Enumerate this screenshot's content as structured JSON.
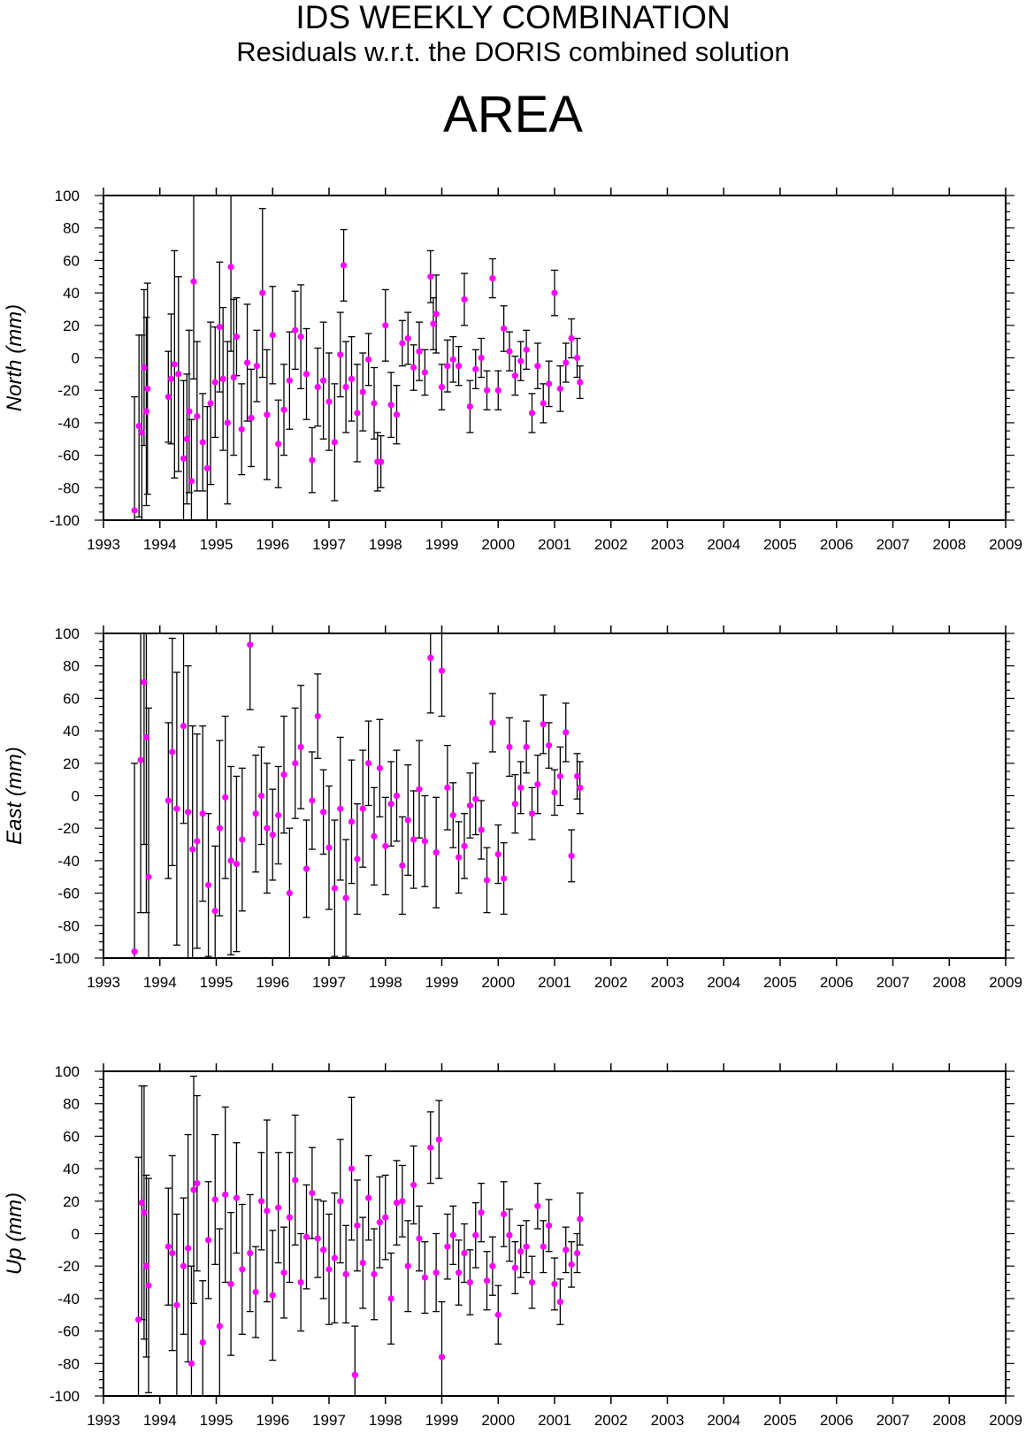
{
  "header": {
    "title": "IDS WEEKLY COMBINATION",
    "subtitle": "Residuals w.r.t. the DORIS combined solution",
    "station": "AREA"
  },
  "colors": {
    "point": "#ff00ff",
    "errorbar": "#000000",
    "axis": "#000000"
  },
  "chart_data": [
    {
      "type": "scatter",
      "ylabel": "North (mm)",
      "xlim": [
        1993,
        2009
      ],
      "ylim": [
        -100,
        100
      ],
      "x_ticks": [
        1993,
        1994,
        1995,
        1996,
        1997,
        1998,
        1999,
        2000,
        2001,
        2002,
        2003,
        2004,
        2005,
        2006,
        2007,
        2008,
        2009
      ],
      "y_ticks": [
        -100,
        -80,
        -60,
        -40,
        -20,
        0,
        20,
        40,
        60,
        80,
        100
      ],
      "series": [
        {
          "x": [
            1993.55,
            1993.63,
            1993.68,
            1993.72,
            1993.76,
            1993.78,
            1994.15,
            1994.2,
            1994.26,
            1994.33,
            1994.42,
            1994.48,
            1994.52,
            1994.56,
            1994.6,
            1994.66,
            1994.76,
            1994.84,
            1994.9,
            1994.98,
            1995.06,
            1995.12,
            1995.2,
            1995.26,
            1995.31,
            1995.36,
            1995.45,
            1995.55,
            1995.62,
            1995.72,
            1995.82,
            1995.9,
            1996.0,
            1996.1,
            1996.2,
            1996.3,
            1996.4,
            1996.5,
            1996.6,
            1996.7,
            1996.8,
            1996.9,
            1997.0,
            1997.1,
            1997.2,
            1997.26,
            1997.3,
            1997.4,
            1997.5,
            1997.6,
            1997.7,
            1997.8,
            1997.86,
            1997.92,
            1998.0,
            1998.1,
            1998.2,
            1998.3,
            1998.4,
            1998.5,
            1998.6,
            1998.7,
            1998.8,
            1998.85,
            1998.9,
            1999.0,
            1999.1,
            1999.2,
            1999.3,
            1999.4,
            1999.5,
            1999.6,
            1999.7,
            1999.8,
            1999.9,
            2000.0,
            2000.1,
            2000.2,
            2000.3,
            2000.4,
            2000.5,
            2000.6,
            2000.7,
            2000.8,
            2000.9,
            2001.0,
            2001.1,
            2001.2,
            2001.3,
            2001.4,
            2001.45
          ],
          "y": [
            -94,
            -42,
            -46,
            -6,
            -33,
            -19,
            -24,
            -13,
            -4,
            -10,
            -62,
            -50,
            -33,
            -76,
            47,
            -36,
            -52,
            -68,
            -28,
            -15,
            19,
            -13,
            -40,
            56,
            -12,
            13,
            -44,
            -3,
            -37,
            -5,
            40,
            -35,
            14,
            -53,
            -32,
            -14,
            17,
            13,
            -10,
            -63,
            -18,
            -14,
            -27,
            -52,
            2,
            57,
            -18,
            -13,
            -34,
            -21,
            -1,
            -28,
            -64,
            -64,
            20,
            -29,
            -35,
            9,
            12,
            -6,
            4,
            -9,
            50,
            21,
            27,
            -18,
            -5,
            -1,
            -5,
            36,
            -30,
            -7,
            0,
            -20,
            49,
            -20,
            18,
            4,
            -11,
            -2,
            5,
            -34,
            -5,
            -28,
            -16,
            40,
            -19,
            -3,
            12,
            0,
            -15
          ],
          "err": [
            70,
            56,
            60,
            48,
            58,
            65,
            28,
            40,
            70,
            60,
            48,
            40,
            50,
            38,
            60,
            46,
            30,
            38,
            50,
            34,
            40,
            44,
            50,
            52,
            48,
            24,
            28,
            36,
            30,
            22,
            52,
            40,
            30,
            27,
            28,
            30,
            24,
            32,
            28,
            20,
            24,
            36,
            30,
            36,
            26,
            22,
            28,
            26,
            30,
            24,
            16,
            22,
            18,
            16,
            22,
            20,
            18,
            14,
            16,
            14,
            18,
            14,
            16,
            16,
            24,
            14,
            16,
            14,
            12,
            16,
            16,
            12,
            12,
            12,
            12,
            12,
            14,
            12,
            12,
            12,
            12,
            12,
            14,
            12,
            14,
            14,
            14,
            12,
            12,
            12,
            10
          ]
        }
      ]
    },
    {
      "type": "scatter",
      "ylabel": "East (mm)",
      "xlim": [
        1993,
        2009
      ],
      "ylim": [
        -100,
        100
      ],
      "x_ticks": [
        1993,
        1994,
        1995,
        1996,
        1997,
        1998,
        1999,
        2000,
        2001,
        2002,
        2003,
        2004,
        2005,
        2006,
        2007,
        2008,
        2009
      ],
      "y_ticks": [
        -100,
        -80,
        -60,
        -40,
        -20,
        0,
        20,
        40,
        60,
        80,
        100
      ],
      "series": [
        {
          "x": [
            1993.55,
            1993.66,
            1993.72,
            1993.76,
            1993.8,
            1994.15,
            1994.22,
            1994.3,
            1994.42,
            1994.5,
            1994.58,
            1994.66,
            1994.76,
            1994.86,
            1994.98,
            1995.06,
            1995.16,
            1995.26,
            1995.36,
            1995.46,
            1995.6,
            1995.7,
            1995.8,
            1995.9,
            1996.0,
            1996.1,
            1996.2,
            1996.3,
            1996.4,
            1996.5,
            1996.6,
            1996.7,
            1996.8,
            1996.9,
            1997.0,
            1997.1,
            1997.2,
            1997.3,
            1997.4,
            1997.5,
            1997.6,
            1997.7,
            1997.8,
            1997.9,
            1998.0,
            1998.1,
            1998.2,
            1998.3,
            1998.4,
            1998.5,
            1998.6,
            1998.7,
            1998.8,
            1998.9,
            1999.0,
            1999.1,
            1999.2,
            1999.3,
            1999.4,
            1999.5,
            1999.6,
            1999.7,
            1999.8,
            1999.9,
            2000.0,
            2000.1,
            2000.2,
            2000.3,
            2000.4,
            2000.5,
            2000.6,
            2000.7,
            2000.8,
            2000.9,
            2001.0,
            2001.1,
            2001.2,
            2001.3,
            2001.4,
            2001.45
          ],
          "y": [
            -96,
            22,
            70,
            36,
            -50,
            -3,
            27,
            -8,
            43,
            -10,
            -33,
            -28,
            -11,
            -55,
            -71,
            -20,
            -1,
            -40,
            -42,
            -27,
            93,
            -11,
            0,
            -20,
            -24,
            -12,
            13,
            -60,
            20,
            30,
            -45,
            -3,
            49,
            -10,
            -32,
            -57,
            -8,
            -63,
            -16,
            -39,
            -8,
            20,
            -25,
            17,
            -31,
            -5,
            0,
            -43,
            -15,
            -27,
            4,
            -28,
            85,
            -35,
            77,
            5,
            -12,
            -38,
            -31,
            -6,
            -2,
            -21,
            -52,
            45,
            -36,
            -51,
            30,
            -5,
            5,
            30,
            -11,
            7,
            44,
            31,
            2,
            12,
            39,
            -37,
            12,
            5
          ],
          "err": [
            116,
            94,
            100,
            108,
            104,
            48,
            70,
            84,
            60,
            90,
            76,
            66,
            54,
            44,
            40,
            54,
            50,
            58,
            54,
            44,
            40,
            36,
            30,
            40,
            28,
            30,
            36,
            40,
            34,
            38,
            30,
            30,
            26,
            26,
            38,
            42,
            44,
            36,
            38,
            34,
            36,
            26,
            30,
            30,
            30,
            26,
            28,
            30,
            34,
            30,
            30,
            28,
            34,
            34,
            28,
            26,
            20,
            22,
            20,
            20,
            22,
            18,
            20,
            18,
            18,
            22,
            18,
            18,
            16,
            16,
            16,
            18,
            18,
            14,
            14,
            18,
            18,
            16,
            14,
            16
          ]
        }
      ]
    },
    {
      "type": "scatter",
      "ylabel": "Up (mm)",
      "xlim": [
        1993,
        2009
      ],
      "ylim": [
        -100,
        100
      ],
      "x_ticks": [
        1993,
        1994,
        1995,
        1996,
        1997,
        1998,
        1999,
        2000,
        2001,
        2002,
        2003,
        2004,
        2005,
        2006,
        2007,
        2008,
        2009
      ],
      "y_ticks": [
        -100,
        -80,
        -60,
        -40,
        -20,
        0,
        20,
        40,
        60,
        80,
        100
      ],
      "series": [
        {
          "x": [
            1993.62,
            1993.68,
            1993.72,
            1993.76,
            1993.8,
            1994.15,
            1994.22,
            1994.3,
            1994.42,
            1994.5,
            1994.56,
            1994.6,
            1994.66,
            1994.76,
            1994.86,
            1994.98,
            1995.06,
            1995.16,
            1995.26,
            1995.36,
            1995.46,
            1995.6,
            1995.7,
            1995.8,
            1995.9,
            1996.0,
            1996.1,
            1996.2,
            1996.3,
            1996.4,
            1996.5,
            1996.6,
            1996.7,
            1996.8,
            1996.9,
            1997.0,
            1997.1,
            1997.2,
            1997.3,
            1997.4,
            1997.46,
            1997.5,
            1997.6,
            1997.7,
            1997.8,
            1997.9,
            1998.0,
            1998.1,
            1998.2,
            1998.3,
            1998.4,
            1998.5,
            1998.6,
            1998.7,
            1998.8,
            1998.9,
            1998.95,
            1999.0,
            1999.1,
            1999.2,
            1999.3,
            1999.4,
            1999.5,
            1999.6,
            1999.7,
            1999.8,
            1999.9,
            2000.0,
            2000.1,
            2000.2,
            2000.3,
            2000.4,
            2000.5,
            2000.6,
            2000.7,
            2000.8,
            2000.9,
            2001.0,
            2001.1,
            2001.2,
            2001.3,
            2001.4,
            2001.45
          ],
          "y": [
            -53,
            19,
            13,
            -20,
            -32,
            -8,
            -12,
            -44,
            -20,
            -9,
            -80,
            27,
            31,
            -67,
            -4,
            21,
            -57,
            24,
            -31,
            22,
            -22,
            -12,
            -36,
            20,
            14,
            -38,
            16,
            -24,
            10,
            33,
            -30,
            -2,
            25,
            -3,
            -10,
            -22,
            -15,
            20,
            -25,
            40,
            -87,
            5,
            -18,
            22,
            -25,
            7,
            10,
            -40,
            19,
            20,
            -20,
            30,
            -3,
            -27,
            53,
            -24,
            58,
            -76,
            -8,
            -1,
            -24,
            -12,
            -30,
            -1,
            13,
            -29,
            -20,
            -50,
            12,
            -1,
            -21,
            -11,
            -8,
            -30,
            17,
            -8,
            5,
            -31,
            -42,
            -10,
            -19,
            -12,
            9
          ],
          "err": [
            100,
            72,
            78,
            56,
            66,
            36,
            60,
            56,
            42,
            70,
            60,
            70,
            54,
            38,
            36,
            40,
            60,
            54,
            44,
            34,
            40,
            36,
            28,
            30,
            56,
            40,
            34,
            28,
            40,
            40,
            30,
            32,
            28,
            24,
            30,
            34,
            40,
            38,
            30,
            44,
            30,
            28,
            28,
            26,
            28,
            28,
            26,
            28,
            26,
            22,
            28,
            24,
            20,
            22,
            22,
            24,
            24,
            34,
            20,
            18,
            20,
            18,
            20,
            20,
            18,
            18,
            18,
            18,
            20,
            16,
            16,
            16,
            16,
            16,
            14,
            16,
            16,
            16,
            14,
            14,
            14,
            12,
            16
          ]
        }
      ]
    }
  ]
}
